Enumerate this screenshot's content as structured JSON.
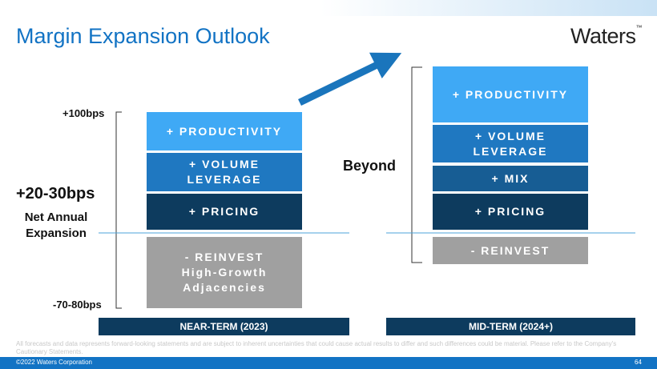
{
  "header": {
    "title": "Margin Expansion Outlook",
    "logo": "Waters",
    "logo_mark": "™"
  },
  "scale": {
    "top": "+100bps",
    "bottom": "-70-80bps",
    "headline": "+20-30bps",
    "headline_note": "Net Annual Expansion"
  },
  "near_term": {
    "label": "NEAR-TERM (2023)",
    "boxes": [
      "+ PRODUCTIVITY",
      "+ VOLUME LEVERAGE",
      "+ PRICING"
    ],
    "reinvest": {
      "title": "- REINVEST",
      "detail": "High-Growth Adjacencies"
    }
  },
  "beyond": "Beyond",
  "mid_term": {
    "label": "MID-TERM (2024+)",
    "boxes": [
      "+ PRODUCTIVITY",
      "+ VOLUME LEVERAGE",
      "+ MIX",
      "+ PRICING"
    ],
    "reinvest": {
      "title": "- REINVEST"
    }
  },
  "footer": {
    "disclaimer": "All forecasts and data represents forward-looking statements and are subject to inherent uncertainties that could cause actual results to differ and such differences could be material. Please refer to the Company's Cautionary Statements.",
    "copyright": "©2022 Waters Corporation",
    "page": "64"
  }
}
